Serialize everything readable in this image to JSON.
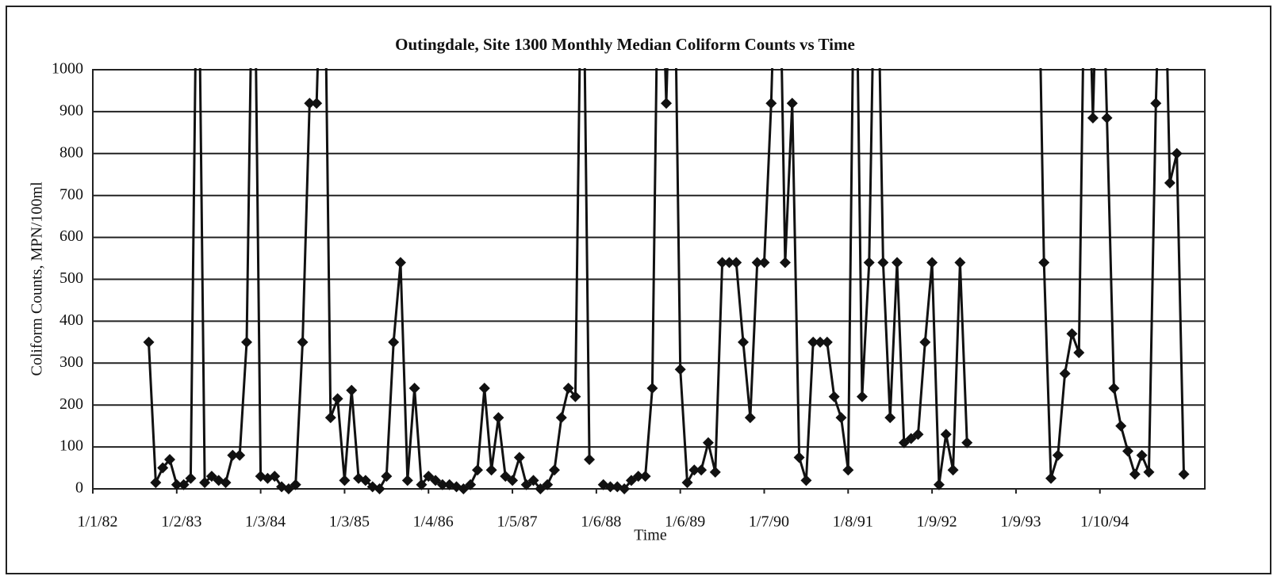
{
  "chart_data": {
    "type": "line",
    "title": "Outingdale, Site 1300  Monthly Median Coliform Counts vs Time",
    "x_label": "Time",
    "y_label": "Coliform Counts, MPN/100ml",
    "ylim": [
      0,
      1000
    ],
    "yticks": [
      0,
      100,
      200,
      300,
      400,
      500,
      600,
      700,
      800,
      900,
      1000
    ],
    "grid": true,
    "categories": [
      "1/1/82",
      null,
      null,
      null,
      null,
      null,
      null,
      null,
      null,
      null,
      null,
      null,
      "1/2/83",
      null,
      null,
      null,
      null,
      null,
      null,
      null,
      null,
      null,
      null,
      null,
      "1/3/84",
      null,
      null,
      null,
      null,
      null,
      null,
      null,
      null,
      null,
      null,
      null,
      "1/3/85",
      null,
      null,
      null,
      null,
      null,
      null,
      null,
      null,
      null,
      null,
      null,
      "1/4/86",
      null,
      null,
      null,
      null,
      null,
      null,
      null,
      null,
      null,
      null,
      null,
      "1/5/87",
      null,
      null,
      null,
      null,
      null,
      null,
      null,
      null,
      null,
      null,
      null,
      "1/6/88",
      null,
      null,
      null,
      null,
      null,
      null,
      null,
      null,
      null,
      null,
      null,
      "1/6/89",
      null,
      null,
      null,
      null,
      null,
      null,
      null,
      null,
      null,
      null,
      null,
      "1/7/90",
      null,
      null,
      null,
      null,
      null,
      null,
      null,
      null,
      null,
      null,
      null,
      "1/8/91",
      null,
      null,
      null,
      null,
      null,
      null,
      null,
      null,
      null,
      null,
      null,
      "1/9/92",
      null,
      null,
      null,
      null,
      null,
      null,
      null,
      null,
      null,
      null,
      null,
      "1/9/93",
      null,
      null,
      null,
      null,
      null,
      null,
      null,
      null,
      null,
      null,
      null,
      "1/10/94",
      null,
      null,
      null,
      null,
      null,
      null,
      null,
      null,
      null,
      null,
      null,
      null,
      null,
      null
    ],
    "series": [
      {
        "color": "#111111",
        "values": [
          null,
          null,
          null,
          null,
          null,
          null,
          null,
          null,
          350,
          15,
          50,
          70,
          10,
          10,
          25,
          1500,
          15,
          30,
          20,
          15,
          80,
          80,
          350,
          1500,
          30,
          25,
          30,
          5,
          0,
          10,
          350,
          920,
          920,
          1500,
          170,
          215,
          20,
          235,
          25,
          20,
          5,
          0,
          30,
          350,
          540,
          20,
          240,
          10,
          30,
          20,
          10,
          10,
          5,
          0,
          10,
          45,
          240,
          45,
          170,
          30,
          20,
          75,
          10,
          20,
          0,
          10,
          45,
          170,
          240,
          220,
          1500,
          70,
          null,
          10,
          5,
          5,
          0,
          20,
          30,
          30,
          240,
          1500,
          920,
          1500,
          285,
          15,
          45,
          45,
          110,
          40,
          540,
          540,
          540,
          350,
          170,
          540,
          540,
          920,
          1500,
          540,
          920,
          75,
          20,
          350,
          350,
          350,
          220,
          170,
          45,
          1500,
          220,
          540,
          1500,
          540,
          170,
          540,
          110,
          120,
          130,
          350,
          540,
          10,
          130,
          45,
          540,
          110,
          null,
          null,
          null,
          null,
          null,
          null,
          null,
          null,
          null,
          1500,
          540,
          25,
          80,
          275,
          370,
          325,
          1500,
          885,
          1500,
          885,
          240,
          150,
          90,
          35,
          80,
          40,
          920,
          1500,
          730,
          800,
          35,
          null,
          null
        ]
      }
    ]
  }
}
